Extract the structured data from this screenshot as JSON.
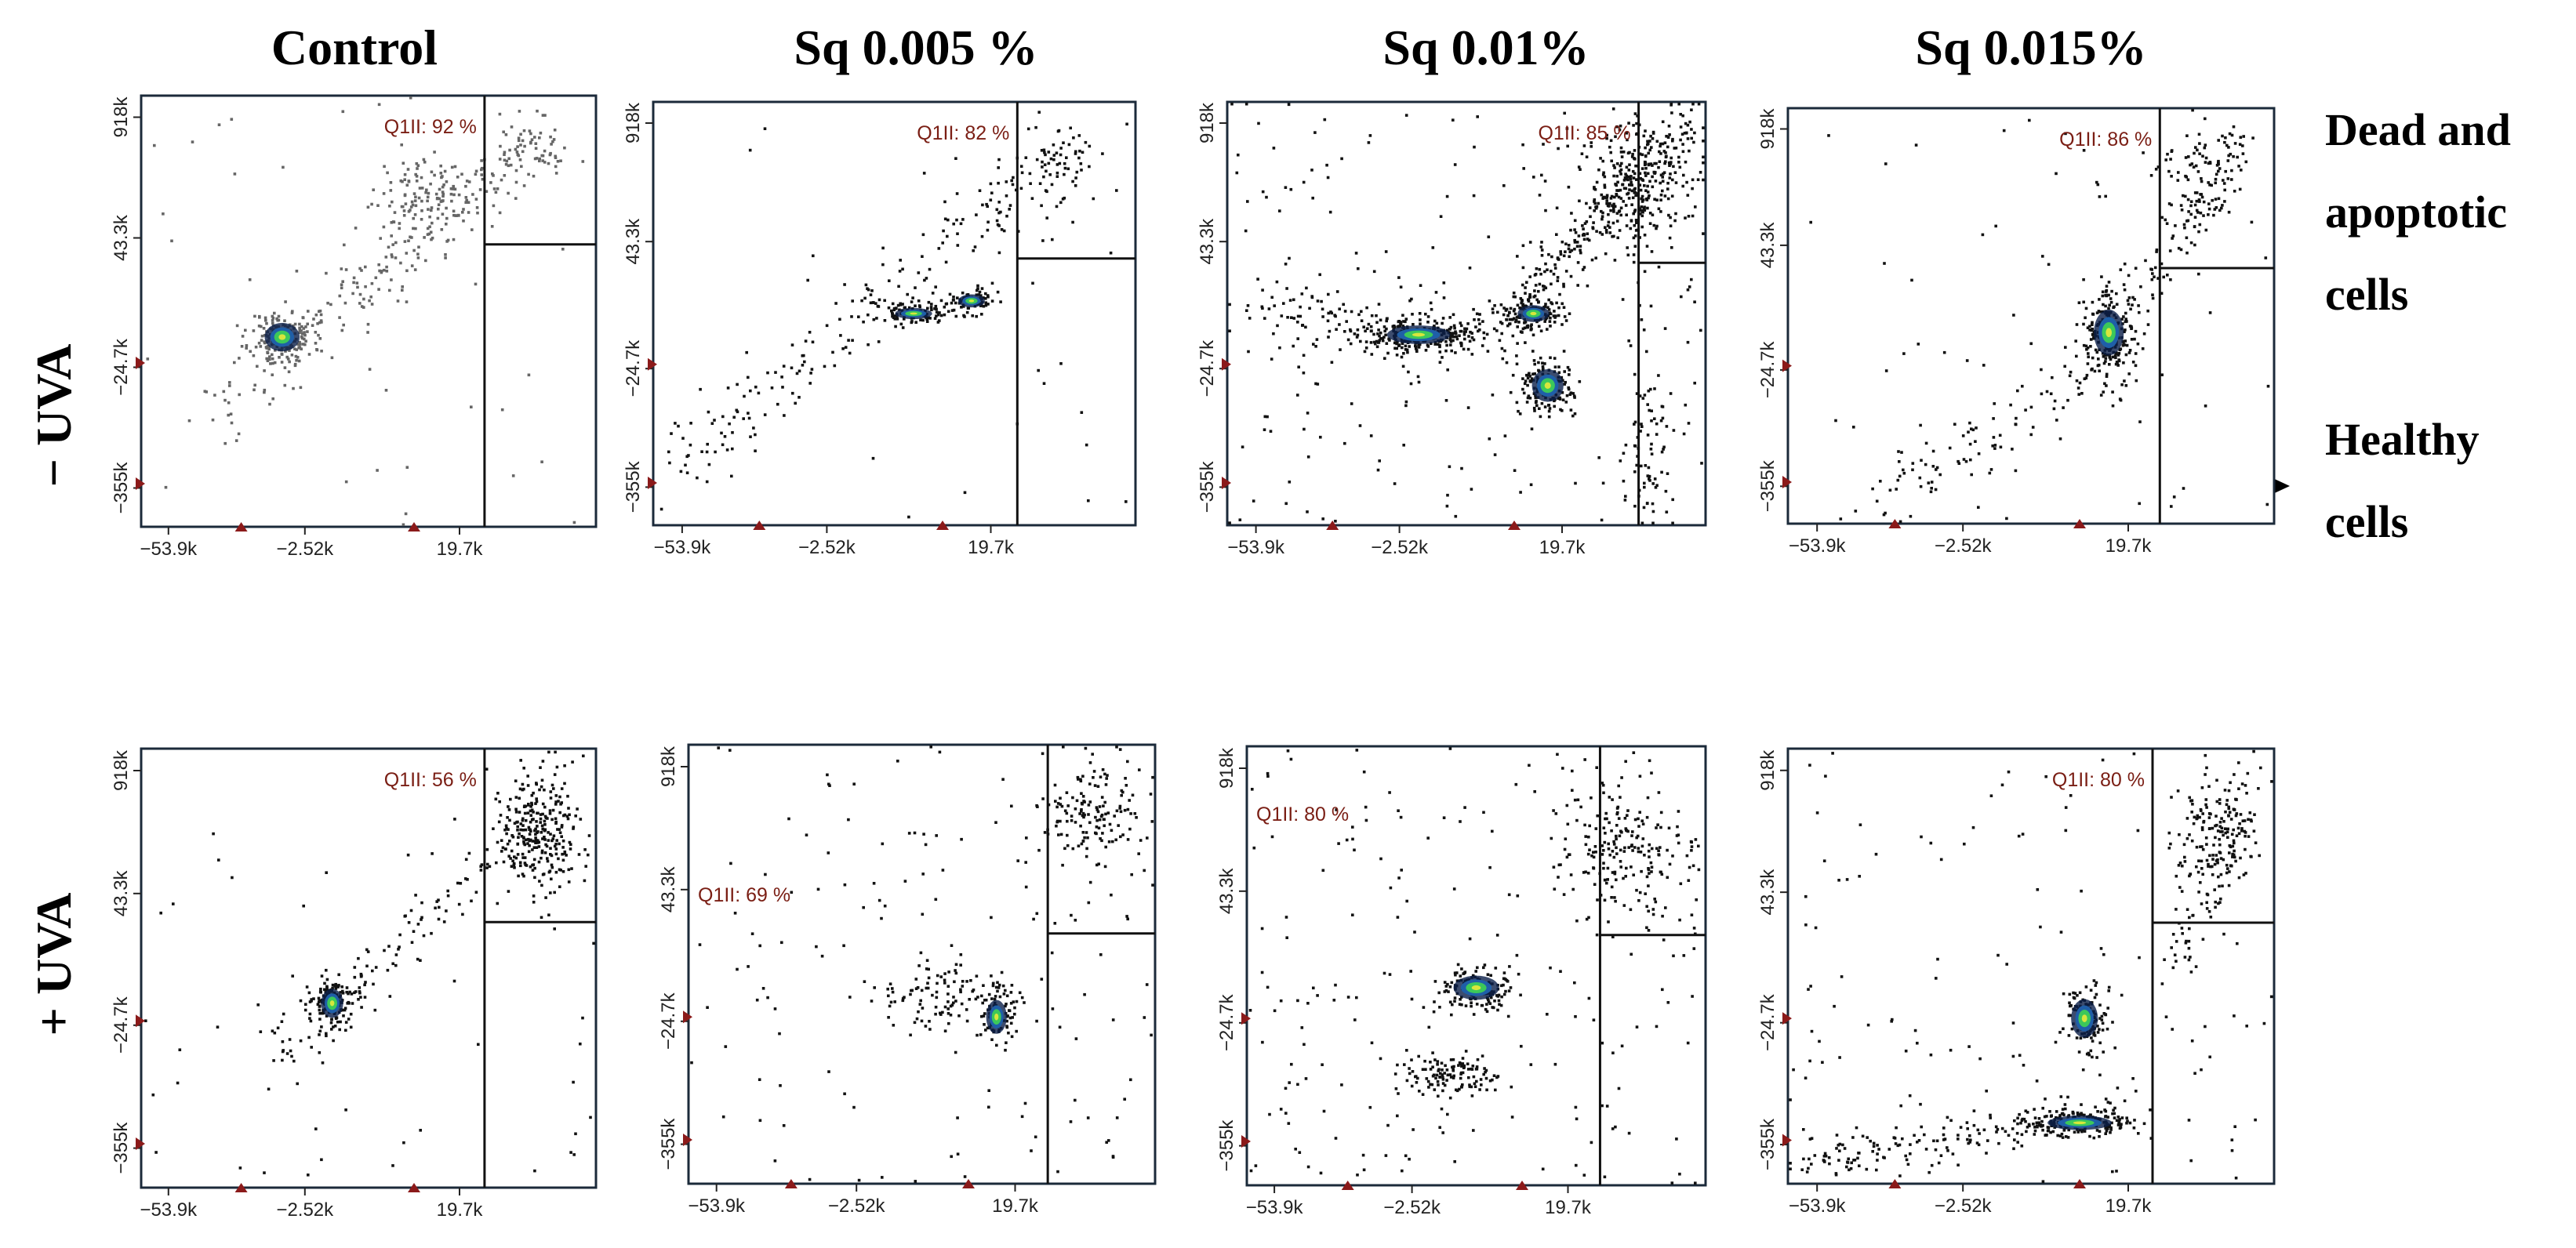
{
  "figure": {
    "column_titles": [
      "Control",
      "Sq 0.005 %",
      "Sq 0.01%",
      "Sq 0.015%"
    ],
    "row_labels": [
      "− UVA",
      "+ UVA"
    ],
    "annotations": {
      "dead_apoptotic": [
        "Dead and",
        "apoptotic",
        "cells"
      ],
      "healthy": [
        "Healthy",
        "cells"
      ]
    },
    "colors": {
      "gate_label": "#7a1e14",
      "marker": "#8b1a1a",
      "dot": "#111111",
      "dot_control": "#666666",
      "density_mid": "#1f5fa8",
      "density_high": "#3cc85a",
      "density_peak": "#d8e63c"
    }
  },
  "chart_data": [
    {
      "type": "scatter",
      "id": "ctrl-neg",
      "row": "− UVA",
      "column": "Control",
      "gate_label": "Q1II: 92 %",
      "x_ticks": [
        "−53.9k",
        "−2.52k",
        "19.7k"
      ],
      "y_ticks": [
        "918k",
        "43.3k",
        "−24.7k",
        "−355k"
      ],
      "xlim": [
        0,
        1
      ],
      "ylim": [
        0,
        1
      ],
      "gate_x": 0.755,
      "gate_y": 0.655,
      "clusters": [
        {
          "x": 0.31,
          "y": 0.44,
          "sx": 0.035,
          "sy": 0.03,
          "n": 180,
          "dense": true
        },
        {
          "x": 0.62,
          "y": 0.77,
          "sx": 0.055,
          "sy": 0.045,
          "n": 120
        },
        {
          "x": 0.86,
          "y": 0.87,
          "sx": 0.04,
          "sy": 0.03,
          "n": 40
        }
      ],
      "lines": [
        {
          "x1": 0.15,
          "y1": 0.25,
          "x2": 0.9,
          "y2": 0.92,
          "n": 220,
          "spread": 0.045
        }
      ],
      "noise": 40,
      "seed": 11
    },
    {
      "type": "scatter",
      "id": "sq005-neg",
      "row": "− UVA",
      "column": "Sq 0.005 %",
      "gate_label": "Q1II: 82 %",
      "x_ticks": [
        "−53.9k",
        "−2.52k",
        "19.7k"
      ],
      "y_ticks": [
        "918k",
        "43.3k",
        "−24.7k",
        "−355k"
      ],
      "xlim": [
        0,
        1
      ],
      "ylim": [
        0,
        1
      ],
      "gate_x": 0.755,
      "gate_y": 0.63,
      "clusters": [
        {
          "x": 0.54,
          "y": 0.5,
          "sx": 0.035,
          "sy": 0.012,
          "n": 90,
          "dense": true
        },
        {
          "x": 0.66,
          "y": 0.53,
          "sx": 0.025,
          "sy": 0.014,
          "n": 80,
          "dense": true
        },
        {
          "x": 0.83,
          "y": 0.85,
          "sx": 0.045,
          "sy": 0.06,
          "n": 60
        }
      ],
      "lines": [
        {
          "x1": 0.05,
          "y1": 0.15,
          "x2": 0.9,
          "y2": 0.9,
          "n": 200,
          "spread": 0.05
        }
      ],
      "noise": 30,
      "seed": 23
    },
    {
      "type": "scatter",
      "id": "sq01-neg",
      "row": "− UVA",
      "column": "Sq 0.01%",
      "gate_label": "Q1II: 85 %",
      "x_ticks": [
        "−53.9k",
        "−2.52k",
        "19.7k"
      ],
      "y_ticks": [
        "918k",
        "43.3k",
        "−24.7k",
        "−355k"
      ],
      "xlim": [
        0,
        1
      ],
      "ylim": [
        0,
        1
      ],
      "gate_x": 0.86,
      "gate_y": 0.62,
      "clusters": [
        {
          "x": 0.4,
          "y": 0.45,
          "sx": 0.06,
          "sy": 0.02,
          "n": 240,
          "dense": true
        },
        {
          "x": 0.64,
          "y": 0.5,
          "sx": 0.03,
          "sy": 0.018,
          "n": 120,
          "dense": true
        },
        {
          "x": 0.67,
          "y": 0.33,
          "sx": 0.03,
          "sy": 0.035,
          "n": 160,
          "dense": true
        },
        {
          "x": 0.86,
          "y": 0.8,
          "sx": 0.06,
          "sy": 0.08,
          "n": 260
        },
        {
          "x": 0.88,
          "y": 0.2,
          "sx": 0.02,
          "sy": 0.12,
          "n": 70
        }
      ],
      "lines": [
        {
          "x1": 0.55,
          "y1": 0.45,
          "x2": 0.97,
          "y2": 0.95,
          "n": 260,
          "spread": 0.04
        },
        {
          "x1": 0.05,
          "y1": 0.5,
          "x2": 0.5,
          "y2": 0.45,
          "n": 120,
          "spread": 0.05
        }
      ],
      "noise": 180,
      "seed": 37
    },
    {
      "type": "scatter",
      "id": "sq015-neg",
      "row": "− UVA",
      "column": "Sq 0.015%",
      "gate_label": "Q1II: 86 %",
      "x_ticks": [
        "−53.9k",
        "−2.52k",
        "19.7k"
      ],
      "y_ticks": [
        "918k",
        "43.3k",
        "−24.7k",
        "−355k"
      ],
      "xlim": [
        0,
        1
      ],
      "ylim": [
        0,
        1
      ],
      "gate_x": 0.765,
      "gate_y": 0.615,
      "clusters": [
        {
          "x": 0.66,
          "y": 0.46,
          "sx": 0.028,
          "sy": 0.05,
          "n": 220,
          "dense": true
        },
        {
          "x": 0.86,
          "y": 0.83,
          "sx": 0.045,
          "sy": 0.07,
          "n": 90
        }
      ],
      "lines": [
        {
          "x1": 0.2,
          "y1": 0.05,
          "x2": 0.68,
          "y2": 0.4,
          "n": 110,
          "spread": 0.05
        },
        {
          "x1": 0.7,
          "y1": 0.5,
          "x2": 0.93,
          "y2": 0.93,
          "n": 90,
          "spread": 0.04
        }
      ],
      "noise": 60,
      "seed": 41
    },
    {
      "type": "scatter",
      "id": "ctrl-pos",
      "row": "+ UVA",
      "column": "Control",
      "gate_label": "Q1II: 56 %",
      "x_ticks": [
        "−53.9k",
        "−2.52k",
        "19.7k"
      ],
      "y_ticks": [
        "918k",
        "43.3k",
        "−24.7k",
        "−355k"
      ],
      "xlim": [
        0,
        1
      ],
      "ylim": [
        0,
        1
      ],
      "gate_x": 0.755,
      "gate_y": 0.605,
      "clusters": [
        {
          "x": 0.42,
          "y": 0.42,
          "sx": 0.022,
          "sy": 0.03,
          "n": 150,
          "dense": true
        },
        {
          "x": 0.88,
          "y": 0.8,
          "sx": 0.05,
          "sy": 0.07,
          "n": 260
        }
      ],
      "lines": [
        {
          "x1": 0.3,
          "y1": 0.3,
          "x2": 0.9,
          "y2": 0.88,
          "n": 140,
          "spread": 0.04
        }
      ],
      "noise": 50,
      "seed": 53
    },
    {
      "type": "scatter",
      "id": "sq005-pos",
      "row": "+ UVA",
      "column": "Sq 0.005 %",
      "gate_label": "Q1II: 69 %",
      "x_ticks": [
        "−53.9k",
        "−2.52k",
        "19.7k"
      ],
      "y_ticks": [
        "918k",
        "43.3k",
        "−24.7k",
        "−355k"
      ],
      "xlim": [
        0,
        1
      ],
      "ylim": [
        0,
        1
      ],
      "gate_x": 0.77,
      "gate_y": 0.57,
      "clusters": [
        {
          "x": 0.55,
          "y": 0.42,
          "sx": 0.07,
          "sy": 0.04,
          "n": 110
        },
        {
          "x": 0.66,
          "y": 0.38,
          "sx": 0.02,
          "sy": 0.035,
          "n": 70,
          "dense": true
        },
        {
          "x": 0.86,
          "y": 0.83,
          "sx": 0.05,
          "sy": 0.07,
          "n": 150
        }
      ],
      "lines": [],
      "noise": 130,
      "seed": 67
    },
    {
      "type": "scatter",
      "id": "sq01-pos",
      "row": "+ UVA",
      "column": "Sq 0.01%",
      "gate_label": "Q1II: 80 %",
      "x_ticks": [
        "−53.9k",
        "−2.52k",
        "19.7k"
      ],
      "y_ticks": [
        "918k",
        "43.3k",
        "−24.7k",
        "−355k"
      ],
      "xlim": [
        0,
        1
      ],
      "ylim": [
        0,
        1
      ],
      "gate_x": 0.77,
      "gate_y": 0.57,
      "clusters": [
        {
          "x": 0.5,
          "y": 0.45,
          "sx": 0.045,
          "sy": 0.025,
          "n": 130,
          "dense": true
        },
        {
          "x": 0.44,
          "y": 0.25,
          "sx": 0.055,
          "sy": 0.025,
          "n": 120
        },
        {
          "x": 0.82,
          "y": 0.77,
          "sx": 0.08,
          "sy": 0.08,
          "n": 200
        }
      ],
      "lines": [],
      "noise": 190,
      "seed": 79
    },
    {
      "type": "scatter",
      "id": "sq015-pos",
      "row": "+ UVA",
      "column": "Sq 0.015%",
      "gate_label": "Q1II: 80 %",
      "x_ticks": [
        "−53.9k",
        "−2.52k",
        "19.7k"
      ],
      "y_ticks": [
        "918k",
        "43.3k",
        "−24.7k",
        "−355k"
      ],
      "xlim": [
        0,
        1
      ],
      "ylim": [
        0,
        1
      ],
      "gate_x": 0.75,
      "gate_y": 0.6,
      "clusters": [
        {
          "x": 0.61,
          "y": 0.38,
          "sx": 0.025,
          "sy": 0.04,
          "n": 140,
          "dense": true
        },
        {
          "x": 0.6,
          "y": 0.14,
          "sx": 0.06,
          "sy": 0.015,
          "n": 180,
          "dense": true
        },
        {
          "x": 0.88,
          "y": 0.8,
          "sx": 0.05,
          "sy": 0.07,
          "n": 150
        }
      ],
      "lines": [
        {
          "x1": 0.02,
          "y1": 0.04,
          "x2": 0.7,
          "y2": 0.17,
          "n": 180,
          "spread": 0.025
        },
        {
          "x1": 0.8,
          "y1": 0.5,
          "x2": 0.95,
          "y2": 0.92,
          "n": 80,
          "spread": 0.035
        }
      ],
      "noise": 120,
      "seed": 97
    }
  ]
}
